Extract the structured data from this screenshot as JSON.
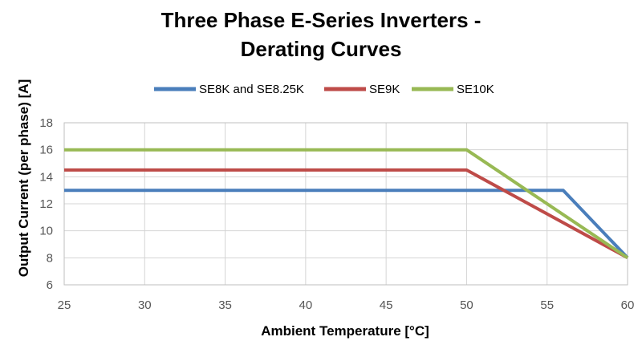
{
  "chart_data": {
    "type": "line",
    "title_line1": "Three Phase E-Series Inverters -",
    "title_line2": "Derating Curves",
    "xlabel": "Ambient Temperature [°C]",
    "ylabel": "Output Current (per phase) [A]",
    "xlim": [
      25,
      60
    ],
    "ylim": [
      6,
      18
    ],
    "x_ticks": [
      25,
      30,
      35,
      40,
      45,
      50,
      55,
      60
    ],
    "y_ticks": [
      6,
      8,
      10,
      12,
      14,
      16,
      18
    ],
    "grid": true,
    "legend_position": "top",
    "series": [
      {
        "name": "SE8K and SE8.25K",
        "color": "#4a7ebb",
        "points": [
          [
            25,
            13
          ],
          [
            56,
            13
          ],
          [
            60,
            8
          ]
        ]
      },
      {
        "name": "SE9K",
        "color": "#be4b48",
        "points": [
          [
            25,
            14.5
          ],
          [
            50,
            14.5
          ],
          [
            60,
            8
          ]
        ]
      },
      {
        "name": "SE10K",
        "color": "#98b954",
        "points": [
          [
            25,
            16
          ],
          [
            50,
            16
          ],
          [
            60,
            8
          ]
        ]
      }
    ]
  }
}
